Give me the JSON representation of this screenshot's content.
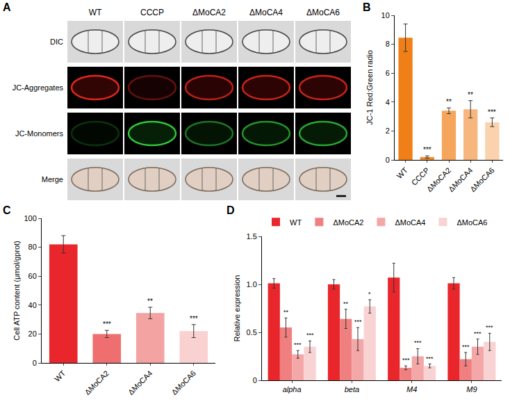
{
  "panel_a": {
    "panel": "A",
    "columns": [
      "WT",
      "CCCP",
      "ΔMoCA2",
      "ΔMoCA4",
      "ΔMoCA6"
    ],
    "rows": [
      "DIC",
      "JC-Aggregates",
      "JC-Monomers",
      "Merge"
    ]
  },
  "chart_data": [
    {
      "panel": "B",
      "type": "bar",
      "categories": [
        "WT",
        "CCCP",
        "ΔMoCA2",
        "ΔMoCA4",
        "ΔMoCA6"
      ],
      "values": [
        8.45,
        0.2,
        3.4,
        3.5,
        2.6
      ],
      "errors": [
        0.95,
        0.08,
        0.2,
        0.6,
        0.3
      ],
      "significance": [
        null,
        "***",
        "**",
        "**",
        "***"
      ],
      "colors": [
        "#F07F17",
        "#F28C2E",
        "#F5A55C",
        "#F7B67E",
        "#FAD2AE"
      ],
      "y_label": "JC-1 Red:Green radio",
      "ylim": [
        0,
        10
      ],
      "yticks": [
        0,
        2,
        4,
        6,
        8,
        10
      ]
    },
    {
      "panel": "C",
      "type": "bar",
      "categories": [
        "WT",
        "ΔMoCA2",
        "ΔMoCA4",
        "ΔMoCA6"
      ],
      "values": [
        82,
        20,
        34.5,
        22
      ],
      "errors": [
        6,
        2.5,
        4,
        4.5
      ],
      "significance": [
        null,
        "***",
        "**",
        "***"
      ],
      "colors": [
        "#E8262B",
        "#EF6F70",
        "#F4A3A3",
        "#FAD1D1"
      ],
      "y_label": "Cell ATP content (μmol/gprot)",
      "ylim": [
        0,
        100
      ],
      "yticks": [
        0,
        20,
        40,
        60,
        80,
        100
      ]
    },
    {
      "panel": "D",
      "type": "bar",
      "categories": [
        "alpha",
        "beta",
        "M4",
        "M9"
      ],
      "series": [
        {
          "name": "WT",
          "color": "#E8262B",
          "values": [
            1.01,
            1.0,
            1.07,
            1.01
          ],
          "errors": [
            0.05,
            0.05,
            0.15,
            0.06
          ],
          "significance": [
            null,
            null,
            null,
            null
          ]
        },
        {
          "name": "ΔMoCA2",
          "color": "#F08080",
          "values": [
            0.55,
            0.64,
            0.13,
            0.22
          ],
          "errors": [
            0.1,
            0.1,
            0.02,
            0.07
          ],
          "significance": [
            "**",
            "**",
            "***",
            "***"
          ]
        },
        {
          "name": "ΔMoCA4",
          "color": "#F4A7A7",
          "values": [
            0.27,
            0.43,
            0.25,
            0.35
          ],
          "errors": [
            0.04,
            0.12,
            0.08,
            0.08
          ],
          "significance": [
            "***",
            "***",
            "***",
            "***"
          ]
        },
        {
          "name": "ΔMoCA6",
          "color": "#F9D3D3",
          "values": [
            0.35,
            0.77,
            0.15,
            0.4
          ],
          "errors": [
            0.06,
            0.07,
            0.02,
            0.09
          ],
          "significance": [
            "***",
            "*",
            "***",
            "***"
          ]
        }
      ],
      "y_label": "Relative expression",
      "ylim": [
        0,
        1.5
      ],
      "yticks": [
        0,
        0.5,
        {
          "value": 1,
          "label": "1.0"
        },
        1.5
      ],
      "legend": "top"
    }
  ]
}
